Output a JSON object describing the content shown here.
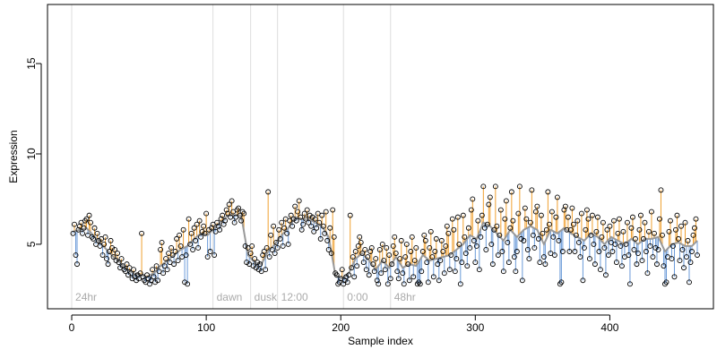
{
  "chart_data": {
    "type": "scatter-fit",
    "x_label": "Sample index",
    "y_label": "Expression",
    "xlim": [
      -18,
      477
    ],
    "ylim": [
      1.43,
      18.27
    ],
    "xticks": [
      0,
      100,
      200,
      300,
      400
    ],
    "yticks": [
      5,
      10,
      15
    ],
    "point_color": "#000000",
    "above_color": "#f0a030",
    "below_color": "#6a9ad8",
    "fit_color": "#999999",
    "event_color": "#dddddd",
    "events": [
      {
        "x": 0,
        "label": "24hr"
      },
      {
        "x": 105,
        "label": "dawn"
      },
      {
        "x": 133,
        "label": "dusk"
      },
      {
        "x": 153,
        "label": "12:00"
      },
      {
        "x": 202,
        "label": "0:00"
      },
      {
        "x": 237,
        "label": "48hr"
      }
    ],
    "x": [
      1,
      2,
      3,
      4,
      5,
      6,
      7,
      8,
      9,
      10,
      11,
      12,
      13,
      14,
      15,
      16,
      17,
      18,
      19,
      20,
      21,
      22,
      23,
      24,
      25,
      26,
      27,
      28,
      29,
      30,
      31,
      32,
      33,
      34,
      35,
      36,
      37,
      38,
      39,
      40,
      41,
      42,
      43,
      44,
      45,
      46,
      47,
      48,
      49,
      50,
      51,
      52,
      53,
      54,
      55,
      56,
      57,
      58,
      59,
      60,
      61,
      62,
      63,
      64,
      65,
      66,
      67,
      68,
      69,
      70,
      71,
      72,
      73,
      74,
      75,
      76,
      77,
      78,
      79,
      80,
      81,
      82,
      83,
      84,
      85,
      86,
      87,
      88,
      89,
      90,
      91,
      92,
      93,
      94,
      95,
      96,
      97,
      98,
      99,
      100,
      101,
      102,
      103,
      104,
      105,
      106,
      107,
      108,
      109,
      110,
      111,
      112,
      113,
      114,
      115,
      116,
      117,
      118,
      119,
      120,
      121,
      122,
      123,
      124,
      125,
      126,
      127,
      128,
      129,
      130,
      131,
      132,
      133,
      134,
      135,
      136,
      137,
      138,
      139,
      140,
      141,
      142,
      143,
      144,
      145,
      146,
      147,
      148,
      149,
      150,
      151,
      152,
      153,
      154,
      155,
      156,
      157,
      158,
      159,
      160,
      161,
      162,
      163,
      164,
      165,
      166,
      167,
      168,
      169,
      170,
      171,
      172,
      173,
      174,
      175,
      176,
      177,
      178,
      179,
      180,
      181,
      182,
      183,
      184,
      185,
      186,
      187,
      188,
      189,
      190,
      191,
      192,
      193,
      194,
      195,
      196,
      197,
      198,
      199,
      200,
      201,
      202,
      203,
      204,
      205,
      206,
      207,
      208,
      209,
      210,
      211,
      212,
      213,
      214,
      215,
      216,
      217,
      218,
      219,
      220,
      221,
      222,
      223,
      224,
      225,
      226,
      227,
      228,
      229,
      230,
      231,
      232,
      233,
      234,
      235,
      236,
      237,
      238,
      239,
      240,
      241,
      242,
      243,
      244,
      245,
      246,
      247,
      248,
      249,
      250,
      251,
      252,
      253,
      254,
      255,
      256,
      257,
      258,
      259,
      260,
      261,
      262,
      263,
      264,
      265,
      266,
      267,
      268,
      269,
      270,
      271,
      272,
      273,
      274,
      275,
      276,
      277,
      278,
      279,
      280,
      281,
      282,
      283,
      284,
      285,
      286,
      287,
      288,
      289,
      290,
      291,
      292,
      293,
      294,
      295,
      296,
      297,
      298,
      299,
      300,
      301,
      302,
      303,
      304,
      305,
      306,
      307,
      308,
      309,
      310,
      311,
      312,
      313,
      314,
      315,
      316,
      317,
      318,
      319,
      320,
      321,
      322,
      323,
      324,
      325,
      326,
      327,
      328,
      329,
      330,
      331,
      332,
      333,
      334,
      335,
      336,
      337,
      338,
      339,
      340,
      341,
      342,
      343,
      344,
      345,
      346,
      347,
      348,
      349,
      350,
      351,
      352,
      353,
      354,
      355,
      356,
      357,
      358,
      359,
      360,
      361,
      362,
      363,
      364,
      365,
      366,
      367,
      368,
      369,
      370,
      371,
      372,
      373,
      374,
      375,
      376,
      377,
      378,
      379,
      380,
      381,
      382,
      383,
      384,
      385,
      386,
      387,
      388,
      389,
      390,
      391,
      392,
      393,
      394,
      395,
      396,
      397,
      398,
      399,
      400,
      401,
      402,
      403,
      404,
      405,
      406,
      407,
      408,
      409,
      410,
      411,
      412,
      413,
      414,
      415,
      416,
      417,
      418,
      419,
      420,
      421,
      422,
      423,
      424,
      425,
      426,
      427,
      428,
      429,
      430,
      431,
      432,
      433,
      434,
      435,
      436,
      437,
      438,
      439,
      440,
      441,
      442,
      443,
      444,
      445,
      446,
      447,
      448,
      449,
      450,
      451,
      452,
      453,
      454,
      455,
      456,
      457,
      458,
      459,
      460,
      461,
      462,
      463,
      464,
      465
    ],
    "values": [
      5.6,
      6.1,
      4.4,
      3.9,
      5.8,
      6.0,
      6.2,
      5.6,
      5.9,
      6.3,
      6.4,
      5.5,
      6.6,
      6.2,
      5.4,
      5.3,
      5.9,
      5.0,
      5.6,
      5.2,
      4.9,
      5.3,
      4.4,
      5.0,
      5.4,
      4.2,
      3.9,
      4.6,
      5.2,
      4.8,
      4.3,
      4.7,
      4.1,
      4.5,
      4.0,
      3.7,
      4.2,
      3.8,
      3.6,
      3.5,
      3.9,
      3.3,
      3.7,
      3.4,
      3.1,
      3.6,
      3.2,
      3.0,
      3.3,
      3.1,
      3.4,
      5.6,
      3.2,
      3.0,
      2.9,
      3.3,
      3.1,
      2.8,
      3.0,
      3.6,
      3.2,
      2.9,
      3.8,
      3.0,
      3.5,
      4.7,
      5.1,
      3.4,
      3.8,
      4.2,
      3.6,
      4.5,
      4.0,
      4.8,
      4.4,
      3.9,
      4.6,
      5.3,
      4.1,
      5.5,
      4.9,
      4.3,
      5.8,
      2.9,
      4.4,
      2.8,
      6.4,
      5.0,
      5.6,
      4.7,
      5.9,
      5.2,
      6.1,
      4.8,
      6.3,
      5.4,
      5.7,
      6.0,
      5.6,
      6.7,
      4.3,
      5.8,
      4.6,
      5.9,
      6.1,
      4.4,
      5.7,
      6.2,
      6.0,
      5.8,
      6.4,
      6.6,
      6.1,
      6.3,
      6.9,
      6.7,
      7.2,
      6.5,
      7.4,
      6.8,
      6.2,
      6.5,
      6.9,
      7.0,
      6.6,
      6.3,
      6.8,
      6.7,
      4.9,
      4.0,
      4.8,
      3.9,
      4.5,
      4.9,
      3.8,
      4.2,
      3.7,
      4.0,
      3.6,
      3.9,
      3.5,
      4.4,
      4.6,
      3.6,
      4.8,
      7.9,
      4.3,
      5.5,
      4.7,
      6.0,
      4.5,
      5.1,
      4.8,
      5.8,
      5.3,
      6.2,
      4.9,
      5.9,
      6.4,
      5.6,
      5.0,
      6.3,
      6.6,
      6.0,
      6.4,
      7.1,
      6.3,
      6.8,
      7.4,
      6.5,
      5.8,
      6.1,
      6.7,
      6.4,
      6.9,
      6.2,
      6.6,
      6.0,
      6.5,
      5.7,
      6.4,
      5.9,
      6.7,
      6.2,
      5.3,
      6.6,
      6.0,
      5.6,
      6.8,
      5.2,
      4.7,
      5.9,
      4.5,
      6.9,
      5.4,
      3.4,
      3.3,
      2.8,
      2.9,
      3.1,
      3.6,
      2.8,
      3.0,
      3.2,
      2.9,
      3.3,
      6.6,
      3.7,
      4.3,
      3.2,
      4.6,
      3.8,
      4.9,
      5.4,
      5.1,
      4.5,
      4.0,
      4.7,
      3.6,
      4.3,
      3.3,
      4.6,
      4.8,
      3.9,
      3.5,
      4.2,
      3.0,
      2.8,
      4.7,
      3.4,
      5.0,
      4.1,
      3.6,
      4.8,
      2.8,
      4.4,
      3.1,
      3.9,
      4.9,
      5.4,
      4.5,
      3.5,
      3.1,
      4.2,
      5.2,
      3.4,
      2.8,
      4.3,
      5.0,
      3.9,
      3.0,
      4.6,
      5.4,
      3.2,
      4.1,
      4.8,
      2.8,
      2.9,
      2.8,
      3.5,
      4.6,
      5.5,
      5.2,
      4.0,
      2.9,
      4.8,
      5.7,
      4.3,
      3.2,
      4.6,
      5.3,
      3.9,
      3.0,
      4.1,
      5.2,
      4.6,
      3.4,
      4.9,
      6.0,
      5.6,
      3.6,
      4.4,
      6.4,
      5.8,
      3.5,
      4.2,
      6.5,
      5.0,
      2.8,
      4.0,
      6.6,
      5.4,
      4.5,
      3.8,
      5.9,
      4.8,
      6.9,
      7.5,
      5.2,
      4.0,
      4.9,
      6.3,
      3.6,
      5.4,
      6.6,
      8.2,
      5.9,
      4.7,
      6.1,
      7.2,
      7.6,
      5.0,
      3.9,
      5.8,
      8.2,
      6.0,
      4.4,
      5.5,
      6.9,
      4.6,
      3.5,
      6.4,
      7.4,
      5.1,
      4.0,
      5.9,
      7.9,
      6.3,
      4.3,
      3.5,
      4.6,
      6.7,
      8.2,
      5.3,
      3.0,
      5.2,
      7.0,
      6.4,
      4.7,
      4.2,
      6.2,
      8.0,
      5.5,
      4.8,
      6.8,
      7.1,
      5.3,
      4.0,
      6.6,
      5.6,
      4.3,
      3.9,
      5.8,
      7.9,
      6.1,
      4.5,
      6.8,
      5.4,
      4.4,
      6.5,
      7.6,
      5.2,
      2.8,
      2.9,
      4.6,
      6.9,
      7.1,
      5.8,
      6.5,
      4.6,
      5.8,
      7.0,
      6.1,
      4.6,
      5.5,
      6.3,
      5.1,
      4.3,
      6.7,
      3.0,
      4.8,
      5.8,
      6.9,
      6.4,
      4.2,
      5.5,
      6.6,
      5.0,
      3.9,
      5.7,
      6.5,
      4.6,
      3.6,
      5.4,
      6.2,
      4.8,
      3.3,
      5.8,
      4.4,
      6.0,
      5.1,
      4.6,
      6.3,
      5.0,
      4.0,
      5.6,
      6.4,
      4.9,
      3.8,
      5.7,
      4.3,
      5.0,
      6.2,
      4.4,
      2.8,
      5.9,
      6.5,
      4.7,
      5.3,
      3.9,
      4.5,
      5.8,
      6.6,
      4.1,
      5.3,
      6.2,
      4.6,
      3.4,
      5.7,
      4.9,
      6.8,
      4.3,
      5.6,
      4.8,
      3.9,
      4.7,
      6.4,
      8.0,
      5.5,
      3.8,
      2.8,
      2.9,
      4.3,
      5.7,
      6.3,
      4.2,
      4.9,
      3.2,
      5.8,
      6.6,
      5.3,
      4.1,
      6.0,
      4.7,
      3.7,
      6.2,
      4.3,
      5.2,
      2.9,
      4.0,
      4.6,
      5.5,
      5.9,
      6.4,
      4.4
    ],
    "fit_x": [
      1,
      6,
      11,
      16,
      21,
      26,
      31,
      36,
      41,
      46,
      51,
      56,
      61,
      66,
      71,
      76,
      81,
      86,
      91,
      96,
      101,
      106,
      111,
      116,
      121,
      126,
      131,
      136,
      141,
      146,
      151,
      156,
      161,
      166,
      171,
      176,
      181,
      186,
      191,
      196,
      201,
      206,
      211,
      216,
      221,
      226,
      231,
      236,
      241,
      246,
      251,
      256,
      261,
      266,
      271,
      276,
      281,
      286,
      291,
      296,
      301,
      306,
      311,
      316,
      321,
      326,
      331,
      336,
      341,
      346,
      351,
      356,
      361,
      366,
      371,
      376,
      381,
      386,
      391,
      396,
      401,
      406,
      411,
      416,
      421,
      426,
      431,
      436,
      441,
      446,
      451,
      456,
      461,
      465
    ],
    "fit_values": [
      5.7,
      5.8,
      5.9,
      5.5,
      5.1,
      4.7,
      4.3,
      4.0,
      3.6,
      3.4,
      3.3,
      3.2,
      3.4,
      3.8,
      4.1,
      4.4,
      4.7,
      4.9,
      5.3,
      5.6,
      5.5,
      5.9,
      6.2,
      6.6,
      6.6,
      6.6,
      4.4,
      4.0,
      3.9,
      4.6,
      5.0,
      5.5,
      5.9,
      6.5,
      6.4,
      6.4,
      6.2,
      6.0,
      5.4,
      3.3,
      3.1,
      3.4,
      4.2,
      4.5,
      4.1,
      3.6,
      4.1,
      3.7,
      4.3,
      3.7,
      3.9,
      3.8,
      4.4,
      4.1,
      4.2,
      4.3,
      4.4,
      4.7,
      5.0,
      5.5,
      5.3,
      6.2,
      6.0,
      5.6,
      5.2,
      5.8,
      5.4,
      5.8,
      6.0,
      5.8,
      5.0,
      5.8,
      5.6,
      5.9,
      5.6,
      5.4,
      5.2,
      5.6,
      5.4,
      5.0,
      5.4,
      5.2,
      5.0,
      5.3,
      5.0,
      5.3,
      5.3,
      5.4,
      4.6,
      5.0,
      5.1,
      4.9,
      4.9,
      5.2
    ]
  }
}
